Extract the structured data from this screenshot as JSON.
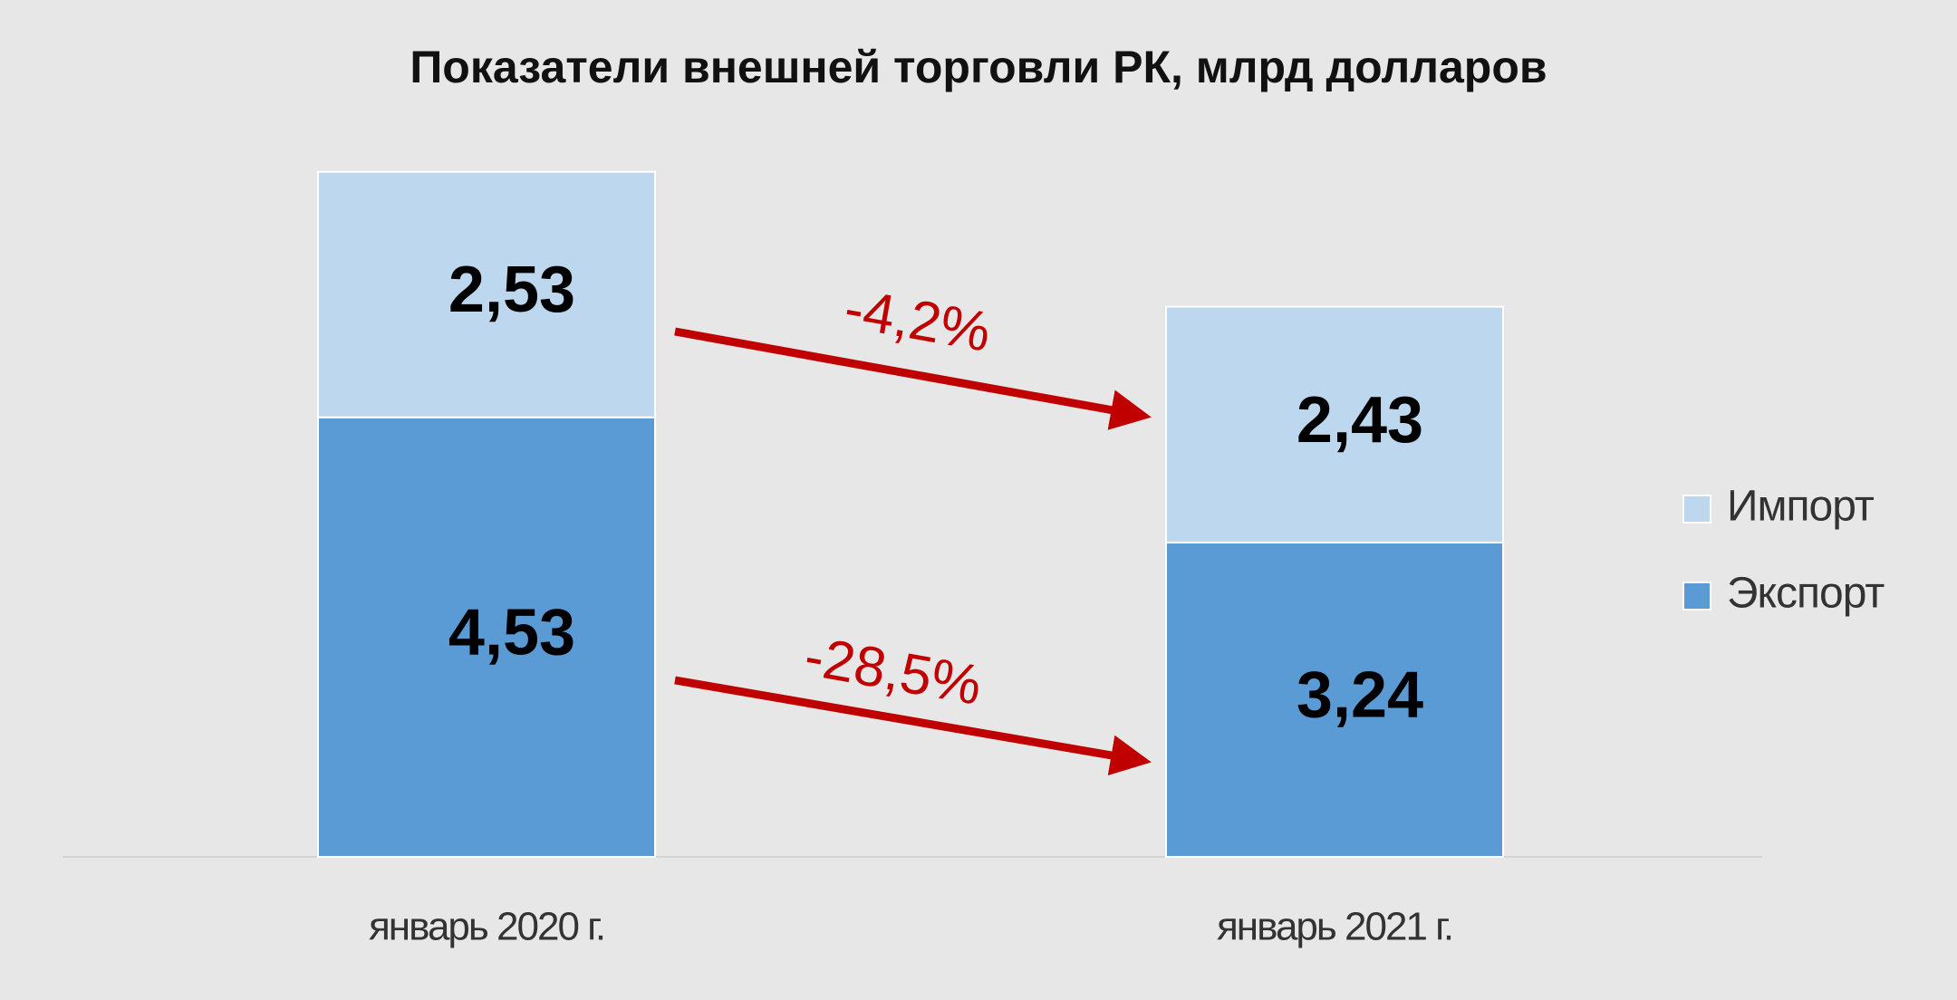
{
  "chart_data": {
    "type": "stacked_bar",
    "title": "Показатели внешней торговли РК, млрд долларов",
    "categories": [
      "январь 2020 г.",
      "январь 2021 г."
    ],
    "series": [
      {
        "name": "Экспорт",
        "color": "#5b9bd5",
        "values": [
          4.53,
          3.24
        ],
        "value_labels": [
          "4,53",
          "3,24"
        ]
      },
      {
        "name": "Импорт",
        "color": "#bdd7ee",
        "values": [
          2.53,
          2.43
        ],
        "value_labels": [
          "2,53",
          "2,43"
        ]
      }
    ],
    "ylim": [
      0,
      8
    ],
    "annotations": [
      "-4,2%",
      "-28,5%"
    ],
    "annotation_color": "#c00000"
  }
}
